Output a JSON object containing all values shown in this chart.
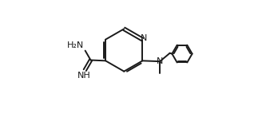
{
  "bg_color": "#ffffff",
  "line_color": "#1a1a1a",
  "line_width": 1.4,
  "figsize": [
    3.38,
    1.47
  ],
  "dpi": 100,
  "xlim": [
    0.0,
    1.0
  ],
  "ylim": [
    0.05,
    0.95
  ]
}
